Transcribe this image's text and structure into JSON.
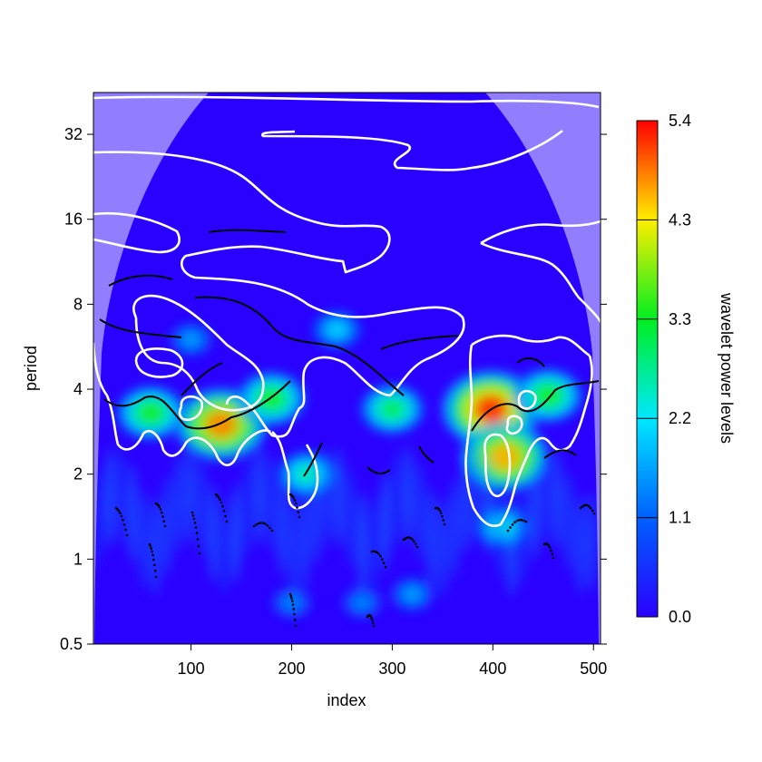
{
  "chart_data": {
    "type": "heatmap",
    "subtype": "wavelet power spectrum",
    "title": "",
    "xlabel": "index",
    "ylabel": "period",
    "colorbar_label": "wavelet power levels",
    "x_ticks": [
      100,
      200,
      300,
      400,
      500
    ],
    "y_ticks": [
      0.5,
      1,
      2,
      4,
      8,
      16,
      32
    ],
    "y_scale": "log2",
    "xlim": [
      3,
      507
    ],
    "ylim": [
      0.5,
      45
    ],
    "colorbar_ticks": [
      "0.0",
      "1.1",
      "2.2",
      "3.3",
      "4.3",
      "5.4"
    ],
    "colorbar_range": [
      0.0,
      5.4
    ],
    "colors": {
      "low": "#2a00ff",
      "mid_low": "#00a8ff",
      "mid": "#00e040",
      "mid_high": "#ffee00",
      "high": "#ff0000",
      "cone_shade": "#9a8cff",
      "significance_contour": "#ffffff",
      "ridge": "#000000"
    },
    "cone_of_influence": "shaded outside",
    "hotspots": [
      {
        "x": 130,
        "period": 3.0,
        "power": 4.8
      },
      {
        "x": 398,
        "period": 3.4,
        "power": 5.2
      },
      {
        "x": 412,
        "period": 2.3,
        "power": 4.6
      },
      {
        "x": 60,
        "period": 3.3,
        "power": 3.3
      },
      {
        "x": 180,
        "period": 3.7,
        "power": 3.3
      },
      {
        "x": 300,
        "period": 3.4,
        "power": 3.0
      },
      {
        "x": 455,
        "period": 3.8,
        "power": 3.3
      },
      {
        "x": 215,
        "period": 2.0,
        "power": 2.6
      },
      {
        "x": 100,
        "period": 6.0,
        "power": 1.6
      },
      {
        "x": 245,
        "period": 6.5,
        "power": 2.0
      },
      {
        "x": 410,
        "period": 1.3,
        "power": 2.3
      },
      {
        "x": 320,
        "period": 0.75,
        "power": 1.6
      },
      {
        "x": 200,
        "period": 0.7,
        "power": 1.4
      },
      {
        "x": 270,
        "period": 0.7,
        "power": 1.4
      }
    ],
    "grid": false,
    "legend": "colorbar right"
  }
}
